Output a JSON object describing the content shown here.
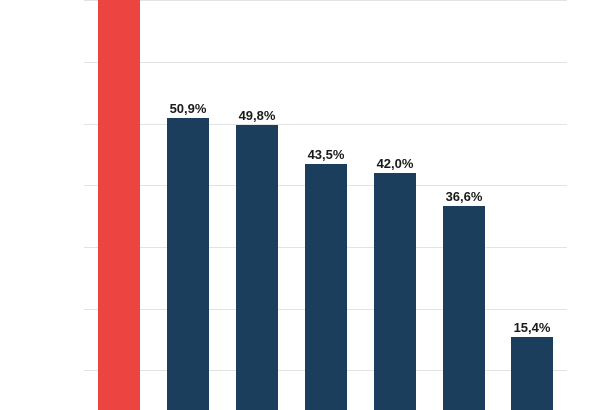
{
  "chart_data": {
    "type": "bar",
    "title": "",
    "xlabel": "",
    "ylabel": "",
    "categories": [
      "",
      "",
      "",
      "",
      "",
      "",
      ""
    ],
    "values": [
      null,
      50.9,
      49.8,
      43.5,
      42.0,
      36.6,
      15.4
    ],
    "value_labels": [
      "",
      "50,9%",
      "49,8%",
      "43,5%",
      "42,0%",
      "36,6%",
      "15,4%"
    ],
    "highlight_index": 0,
    "note": "First (red) bar extends beyond top of visible area; its value label is not visible",
    "ylim": [
      0,
      70
    ],
    "grid": true,
    "gridline_values": [
      10,
      20,
      30,
      40,
      50,
      60,
      70
    ],
    "colors": {
      "highlight": "#EC4440",
      "default": "#1A3E5C",
      "grid": "#E3E3E3",
      "label": "#1A1A1A"
    }
  }
}
